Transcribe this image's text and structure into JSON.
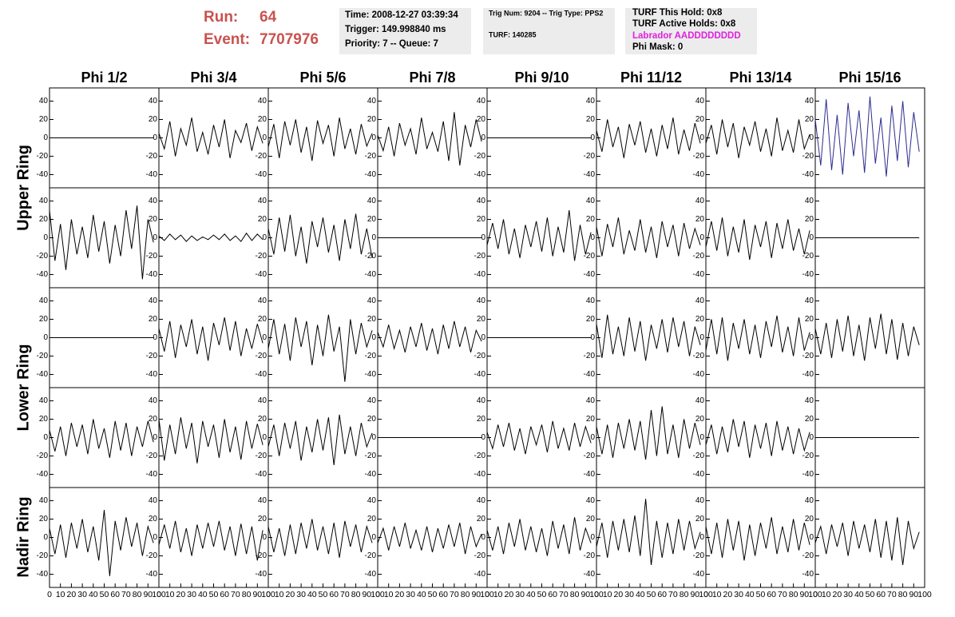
{
  "header": {
    "run_label": "Run:",
    "run": "64",
    "event_label": "Event:",
    "event": "7707976",
    "time_box": [
      "Time: 2008-12-27 03:39:34",
      "Trigger: 149.998840 ms",
      "Priority: 7 -- Queue: 7"
    ],
    "trig_box": [
      "Trig Num: 9204 -- Trig Type: PPS2",
      "TURF: 140285"
    ],
    "turf_box": [
      "TURF This Hold: 0x8",
      "TURF Active Holds: 0x8",
      "Labrador AADDDDDDDD",
      "Phi Mask: 0"
    ]
  },
  "columns": [
    "Phi 1/2",
    "Phi 3/4",
    "Phi 5/6",
    "Phi 7/8",
    "Phi 9/10",
    "Phi 11/12",
    "Phi 13/14",
    "Phi 15/16"
  ],
  "ring_labels": [
    "Upper Ring",
    "Lower Ring",
    "Nadir Ring"
  ],
  "x": [
    0,
    5,
    10,
    15,
    20,
    25,
    30,
    35,
    40,
    45,
    50,
    55,
    60,
    65,
    70,
    75,
    80,
    85,
    90,
    95
  ],
  "xlim": [
    0,
    100
  ],
  "xticks": [
    0,
    10,
    20,
    30,
    40,
    50,
    60,
    70,
    80,
    90,
    100
  ],
  "ylim": [
    -50,
    50
  ],
  "yticks": [
    -40,
    -20,
    0,
    20,
    40
  ],
  "waveforms": [
    [
      {
        "color": "#000000",
        "values": [
          0,
          0,
          0,
          0,
          0,
          0,
          0,
          0,
          0,
          0,
          0,
          0,
          0,
          0,
          0,
          0,
          0,
          0,
          0,
          0
        ]
      },
      {
        "color": "#000000",
        "values": [
          5,
          -12,
          18,
          -20,
          10,
          -8,
          22,
          -15,
          6,
          -18,
          14,
          -10,
          20,
          -22,
          8,
          -5,
          16,
          -14,
          12,
          -6
        ]
      },
      {
        "color": "#000000",
        "values": [
          -10,
          15,
          -22,
          18,
          -8,
          20,
          -16,
          12,
          -25,
          19,
          -6,
          14,
          -20,
          22,
          -12,
          10,
          -18,
          15,
          -9,
          5
        ]
      },
      {
        "color": "#000000",
        "values": [
          3,
          -14,
          12,
          -20,
          16,
          -8,
          10,
          -18,
          22,
          -12,
          6,
          -15,
          18,
          -25,
          28,
          -30,
          14,
          -10,
          20,
          -4
        ]
      },
      {
        "color": "#000000",
        "values": [
          0,
          0,
          0,
          0,
          0,
          0,
          0,
          0,
          0,
          0,
          0,
          0,
          0,
          0,
          0,
          0,
          0,
          0,
          0,
          0
        ]
      },
      {
        "color": "#000000",
        "values": [
          8,
          -15,
          20,
          -10,
          12,
          -22,
          15,
          -8,
          18,
          -16,
          10,
          -20,
          14,
          -12,
          22,
          -18,
          9,
          -14,
          16,
          -6
        ]
      },
      {
        "color": "#000000",
        "values": [
          -6,
          14,
          -18,
          20,
          -10,
          16,
          -22,
          12,
          -8,
          18,
          -15,
          10,
          -20,
          22,
          -14,
          8,
          -16,
          20,
          -12,
          4
        ]
      },
      {
        "color": "#2b2b8f",
        "values": [
          20,
          -30,
          42,
          -35,
          25,
          -40,
          38,
          -20,
          30,
          -38,
          45,
          -28,
          22,
          -42,
          35,
          -25,
          40,
          -32,
          28,
          -15
        ]
      }
    ],
    [
      {
        "color": "#000000",
        "values": [
          30,
          -25,
          15,
          -35,
          20,
          -18,
          12,
          -22,
          25,
          -15,
          18,
          -28,
          14,
          -20,
          30,
          -12,
          35,
          -45,
          20,
          -5
        ]
      },
      {
        "color": "#000000",
        "values": [
          2,
          -3,
          4,
          -2,
          3,
          -4,
          2,
          -3,
          1,
          -2,
          3,
          -2,
          4,
          -3,
          2,
          -4,
          5,
          -3,
          4,
          -2
        ]
      },
      {
        "color": "#000000",
        "values": [
          10,
          -18,
          22,
          -15,
          25,
          -20,
          12,
          -28,
          18,
          -10,
          22,
          -16,
          14,
          -25,
          20,
          -12,
          26,
          -18,
          10,
          -22
        ]
      },
      {
        "color": "#000000",
        "values": [
          0,
          0,
          0,
          0,
          0,
          0,
          0,
          0,
          0,
          0,
          0,
          0,
          0,
          0,
          0,
          0,
          0,
          0,
          0,
          0
        ]
      },
      {
        "color": "#000000",
        "values": [
          -8,
          16,
          -12,
          20,
          -18,
          10,
          -22,
          14,
          -10,
          18,
          -15,
          22,
          -20,
          12,
          -16,
          30,
          -25,
          14,
          -18,
          6
        ]
      },
      {
        "color": "#000000",
        "values": [
          12,
          -20,
          15,
          -10,
          22,
          -18,
          8,
          -14,
          20,
          -16,
          12,
          -22,
          18,
          -10,
          14,
          -20,
          16,
          -12,
          10,
          -8
        ]
      },
      {
        "color": "#000000",
        "values": [
          -10,
          18,
          -14,
          22,
          -20,
          12,
          -16,
          20,
          -24,
          14,
          -10,
          18,
          -22,
          16,
          -12,
          20,
          -14,
          10,
          -18,
          8
        ]
      },
      {
        "color": "#000000",
        "values": [
          0,
          0,
          0,
          0,
          0,
          0,
          0,
          0,
          0,
          0,
          0,
          0,
          0,
          0,
          0,
          0,
          0,
          0,
          0,
          0
        ]
      }
    ],
    [
      {
        "color": "#000000",
        "values": [
          0,
          0,
          0,
          0,
          0,
          0,
          0,
          0,
          0,
          0,
          0,
          0,
          0,
          0,
          0,
          0,
          0,
          0,
          0,
          0
        ]
      },
      {
        "color": "#000000",
        "values": [
          10,
          -15,
          18,
          -22,
          14,
          -10,
          20,
          -18,
          12,
          -25,
          16,
          -8,
          22,
          -14,
          18,
          -20,
          10,
          -12,
          15,
          -6
        ]
      },
      {
        "color": "#000000",
        "values": [
          -12,
          20,
          -18,
          15,
          -25,
          22,
          -10,
          18,
          -30,
          14,
          -20,
          25,
          -15,
          12,
          -48,
          20,
          -18,
          16,
          -10,
          8
        ]
      },
      {
        "color": "#000000",
        "values": [
          6,
          -10,
          14,
          -12,
          8,
          -16,
          12,
          -10,
          16,
          -14,
          10,
          -18,
          14,
          -12,
          18,
          -10,
          12,
          -16,
          8,
          -4
        ]
      },
      {
        "color": "#000000",
        "values": [
          0,
          0,
          0,
          0,
          0,
          0,
          0,
          0,
          0,
          0,
          0,
          0,
          0,
          0,
          0,
          0,
          0,
          0,
          0,
          0
        ]
      },
      {
        "color": "#000000",
        "values": [
          15,
          -22,
          25,
          -18,
          12,
          -20,
          22,
          -15,
          18,
          -25,
          14,
          -12,
          20,
          -16,
          22,
          -10,
          18,
          -20,
          12,
          -8
        ]
      },
      {
        "color": "#000000",
        "values": [
          -14,
          20,
          -18,
          22,
          -25,
          16,
          -12,
          20,
          -18,
          14,
          -22,
          18,
          -10,
          24,
          -16,
          12,
          -20,
          22,
          -14,
          6
        ]
      },
      {
        "color": "#000000",
        "values": [
          10,
          -18,
          16,
          -22,
          20,
          -15,
          24,
          -20,
          14,
          -25,
          22,
          -12,
          26,
          -18,
          20,
          -24,
          16,
          -20,
          12,
          -8
        ]
      }
    ],
    [
      {
        "color": "#000000",
        "values": [
          8,
          -15,
          12,
          -20,
          16,
          -10,
          14,
          -18,
          20,
          -12,
          10,
          -22,
          18,
          -14,
          16,
          -20,
          12,
          -10,
          18,
          -5
        ]
      },
      {
        "color": "#000000",
        "values": [
          20,
          -25,
          14,
          -18,
          22,
          -12,
          16,
          -28,
          18,
          -10,
          14,
          -22,
          20,
          -16,
          12,
          -24,
          18,
          -12,
          15,
          -8
        ]
      },
      {
        "color": "#000000",
        "values": [
          -10,
          14,
          -20,
          16,
          -12,
          18,
          -25,
          12,
          -16,
          20,
          -14,
          22,
          -30,
          25,
          -18,
          12,
          -20,
          16,
          -10,
          5
        ]
      },
      {
        "color": "#000000",
        "values": [
          0,
          0,
          0,
          0,
          0,
          0,
          0,
          0,
          0,
          0,
          0,
          0,
          0,
          0,
          0,
          0,
          0,
          0,
          0,
          0
        ]
      },
      {
        "color": "#000000",
        "values": [
          6,
          -12,
          14,
          -10,
          16,
          -14,
          10,
          -18,
          12,
          -8,
          14,
          -16,
          18,
          -12,
          10,
          -14,
          16,
          -10,
          12,
          -6
        ]
      },
      {
        "color": "#000000",
        "values": [
          12,
          -18,
          14,
          -22,
          16,
          -12,
          20,
          -14,
          18,
          -24,
          30,
          -20,
          34,
          -18,
          14,
          -22,
          20,
          -12,
          16,
          -8
        ]
      },
      {
        "color": "#000000",
        "values": [
          -8,
          14,
          -18,
          12,
          -16,
          20,
          -10,
          18,
          -22,
          14,
          -12,
          16,
          -20,
          18,
          -14,
          12,
          -18,
          10,
          -14,
          6
        ]
      },
      {
        "color": "#000000",
        "values": [
          0,
          0,
          0,
          0,
          0,
          0,
          0,
          0,
          0,
          0,
          0,
          0,
          0,
          0,
          0,
          0,
          0,
          0,
          0,
          0
        ]
      }
    ],
    [
      {
        "color": "#000000",
        "values": [
          10,
          -18,
          14,
          -22,
          16,
          -12,
          20,
          -16,
          12,
          -25,
          30,
          -42,
          18,
          -14,
          22,
          -10,
          16,
          -20,
          12,
          -6
        ]
      },
      {
        "color": "#000000",
        "values": [
          -8,
          14,
          -12,
          18,
          -16,
          10,
          -20,
          14,
          -12,
          16,
          -10,
          18,
          -14,
          12,
          -20,
          15,
          -18,
          12,
          -25,
          8
        ]
      },
      {
        "color": "#000000",
        "values": [
          12,
          -16,
          10,
          -20,
          14,
          -18,
          16,
          -12,
          20,
          -14,
          12,
          -18,
          16,
          -22,
          18,
          -10,
          14,
          -16,
          12,
          -6
        ]
      },
      {
        "color": "#000000",
        "values": [
          -6,
          10,
          -14,
          12,
          -10,
          16,
          -12,
          8,
          -14,
          12,
          -16,
          10,
          -12,
          14,
          -10,
          16,
          -18,
          12,
          -10,
          4
        ]
      },
      {
        "color": "#000000",
        "values": [
          8,
          -14,
          12,
          -18,
          16,
          -10,
          20,
          -14,
          12,
          -16,
          10,
          -20,
          18,
          -12,
          14,
          -18,
          22,
          -14,
          10,
          -6
        ]
      },
      {
        "color": "#000000",
        "values": [
          -10,
          16,
          -22,
          18,
          -14,
          20,
          -16,
          24,
          -20,
          42,
          -30,
          18,
          -22,
          16,
          -18,
          20,
          -14,
          18,
          -12,
          6
        ]
      },
      {
        "color": "#000000",
        "values": [
          12,
          -18,
          16,
          -22,
          20,
          -14,
          18,
          -25,
          14,
          -20,
          16,
          -12,
          22,
          -18,
          12,
          -16,
          20,
          -14,
          16,
          -8
        ]
      },
      {
        "color": "#000000",
        "values": [
          -6,
          12,
          -18,
          14,
          -10,
          16,
          -20,
          18,
          -12,
          14,
          -16,
          20,
          -22,
          18,
          -25,
          22,
          -30,
          18,
          -12,
          6
        ]
      }
    ]
  ]
}
